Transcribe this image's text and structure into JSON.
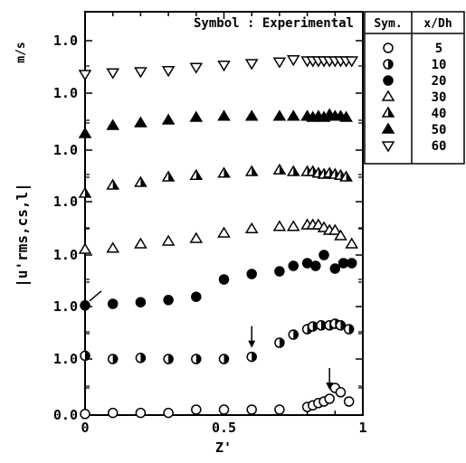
{
  "chart_data": {
    "type": "scatter",
    "title": "",
    "note": "Symbol : Experimental",
    "xlabel": "Z'",
    "ylabel": "|u'rms,cs,l|",
    "yunit": "m/s",
    "xlim": [
      0,
      1
    ],
    "x_ticks": [
      "0",
      "0.5",
      "1"
    ],
    "y_tick_labels": [
      "0.0",
      "1.0",
      "1.0",
      "1.0",
      "1.0",
      "1.0",
      "1.0",
      "1.0"
    ],
    "legend": {
      "col1": "Sym.",
      "col2": "x/Dh",
      "values": [
        "5",
        "10",
        "20",
        "30",
        "40",
        "50",
        "60"
      ]
    },
    "series": [
      {
        "name": "5",
        "marker": "circle-open",
        "offset": 0,
        "x": [
          0.0,
          0.1,
          0.2,
          0.3,
          0.4,
          0.5,
          0.6,
          0.7,
          0.8,
          0.82,
          0.84,
          0.86,
          0.88,
          0.9,
          0.92,
          0.95
        ],
        "y": [
          0.02,
          0.04,
          0.04,
          0.04,
          0.1,
          0.1,
          0.1,
          0.1,
          0.15,
          0.18,
          0.22,
          0.25,
          0.3,
          0.5,
          0.42,
          0.25
        ]
      },
      {
        "name": "10",
        "marker": "circle-half",
        "offset": 1,
        "x": [
          0.0,
          0.1,
          0.2,
          0.3,
          0.4,
          0.5,
          0.6,
          0.7,
          0.75,
          0.8,
          0.82,
          0.85,
          0.88,
          0.9,
          0.92,
          0.95
        ],
        "y": [
          0.06,
          0.0,
          0.02,
          0.0,
          0.0,
          0.0,
          0.04,
          0.3,
          0.45,
          0.55,
          0.6,
          0.62,
          0.62,
          0.65,
          0.62,
          0.55
        ]
      },
      {
        "name": "20",
        "marker": "circle-filled",
        "offset": 2,
        "x": [
          0.0,
          0.1,
          0.2,
          0.3,
          0.4,
          0.5,
          0.6,
          0.7,
          0.75,
          0.8,
          0.83,
          0.86,
          0.9,
          0.93,
          0.96
        ],
        "y": [
          0.02,
          0.05,
          0.08,
          0.12,
          0.18,
          0.5,
          0.6,
          0.65,
          0.75,
          0.8,
          0.75,
          0.95,
          0.7,
          0.8,
          0.8
        ]
      },
      {
        "name": "30",
        "marker": "triangle-open",
        "offset": 3,
        "x": [
          0.0,
          0.1,
          0.2,
          0.3,
          0.4,
          0.5,
          0.6,
          0.7,
          0.75,
          0.8,
          0.82,
          0.84,
          0.86,
          0.88,
          0.9,
          0.92,
          0.96
        ],
        "y": [
          0.1,
          0.12,
          0.2,
          0.25,
          0.3,
          0.4,
          0.48,
          0.52,
          0.52,
          0.55,
          0.55,
          0.55,
          0.5,
          0.45,
          0.45,
          0.35,
          0.2
        ]
      },
      {
        "name": "40",
        "marker": "triangle-half",
        "offset": 4,
        "x": [
          0.0,
          0.1,
          0.2,
          0.3,
          0.4,
          0.5,
          0.6,
          0.7,
          0.75,
          0.8,
          0.82,
          0.84,
          0.86,
          0.88,
          0.9,
          0.92,
          0.94
        ],
        "y": [
          0.15,
          0.3,
          0.35,
          0.45,
          0.48,
          0.52,
          0.55,
          0.58,
          0.55,
          0.55,
          0.55,
          0.52,
          0.5,
          0.52,
          0.5,
          0.48,
          0.45
        ]
      },
      {
        "name": "50",
        "marker": "triangle-filled",
        "offset": 5,
        "x": [
          0.0,
          0.1,
          0.2,
          0.3,
          0.4,
          0.5,
          0.6,
          0.7,
          0.75,
          0.8,
          0.82,
          0.84,
          0.86,
          0.88,
          0.9,
          0.92,
          0.94
        ],
        "y": [
          0.3,
          0.45,
          0.5,
          0.55,
          0.6,
          0.62,
          0.62,
          0.62,
          0.62,
          0.62,
          0.6,
          0.62,
          0.6,
          0.65,
          0.62,
          0.62,
          0.6
        ]
      },
      {
        "name": "60",
        "marker": "triangle-down-open",
        "offset": 6,
        "x": [
          0.0,
          0.1,
          0.2,
          0.3,
          0.4,
          0.5,
          0.6,
          0.7,
          0.75,
          0.8,
          0.82,
          0.84,
          0.86,
          0.88,
          0.9,
          0.92,
          0.94,
          0.96
        ],
        "y": [
          0.35,
          0.38,
          0.4,
          0.42,
          0.48,
          0.52,
          0.55,
          0.58,
          0.62,
          0.6,
          0.6,
          0.6,
          0.6,
          0.6,
          0.6,
          0.6,
          0.6,
          0.6
        ]
      }
    ],
    "annotations": [
      {
        "type": "arrow-down",
        "series": "10",
        "x": 0.6
      },
      {
        "type": "arrow-down",
        "series": "5",
        "x": 0.88
      },
      {
        "type": "slash",
        "series": "20",
        "x": 0.0
      }
    ]
  }
}
